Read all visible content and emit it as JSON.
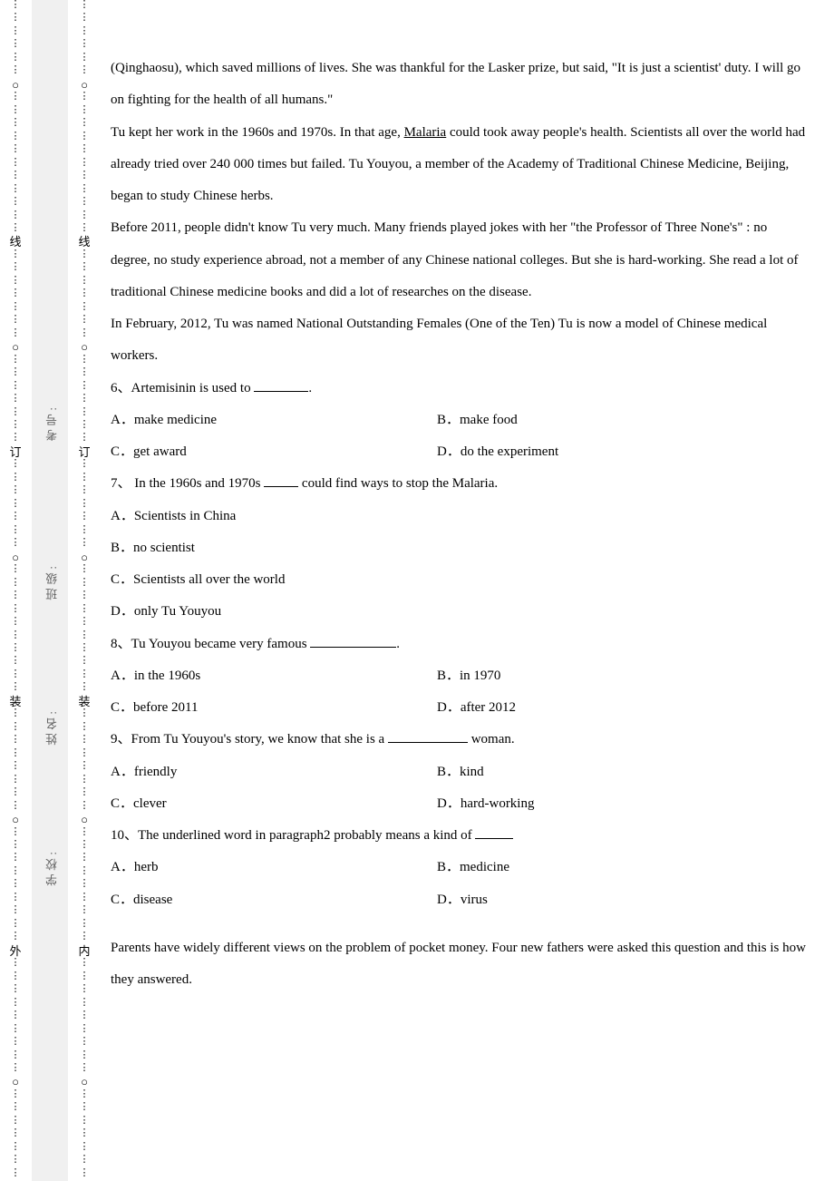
{
  "margin": {
    "labels": {
      "kaohao_label": "考号:",
      "banji_label": "班级:",
      "xingming_label": "姓名:",
      "xuexiao_label": "学校:"
    },
    "col_glyphs": {
      "wai": "外",
      "nei": "内",
      "zhuang": "装",
      "ding": "订",
      "xian": "线"
    }
  },
  "passage1": {
    "p1": "(Qinghaosu), which saved millions of lives. She was thankful for the Lasker prize, but said, \"It is just a scientist' duty. I will go on fighting for the health of all humans.\"",
    "p2a": "Tu kept her work in the 1960s and 1970s. In that age, ",
    "p2_underlined": "Malaria",
    "p2b": " could took away people's health. Scientists all over the world had already tried over 240 000 times but failed. Tu Youyou, a member of the Academy of Traditional Chinese Medicine, Beijing, began to study Chinese herbs.",
    "p3": "Before 2011, people didn't know Tu very much. Many friends played jokes with her \"the Professor of Three None's\" : no degree, no study experience abroad, not a member of any Chinese national colleges. But she is hard-working. She read a lot of traditional Chinese medicine books and did a lot of researches on the disease.",
    "p4": "In February, 2012, Tu was named National Outstanding Females (One of the Ten) Tu is now a model of Chinese medical workers."
  },
  "questions": [
    {
      "num": "6、",
      "stem_pre": "Artemisinin is used to ",
      "stem_post": ".",
      "blank_w": 60,
      "opts": [
        {
          "label": "A．",
          "text": "make medicine"
        },
        {
          "label": "B．",
          "text": "make food"
        },
        {
          "label": "C．",
          "text": "get award"
        },
        {
          "label": "D．",
          "text": "do the experiment"
        }
      ],
      "layout": "2col"
    },
    {
      "num": "7、",
      "stem_pre": " In the 1960s and 1970s ",
      "stem_post": " could find ways to stop the Malaria.",
      "blank_w": 38,
      "opts": [
        {
          "label": "A．",
          "text": "Scientists in China"
        },
        {
          "label": "B．",
          "text": "no scientist"
        },
        {
          "label": "C．",
          "text": "Scientists all over the world"
        },
        {
          "label": "D．",
          "text": "only Tu Youyou"
        }
      ],
      "layout": "1col"
    },
    {
      "num": "8、",
      "stem_pre": "Tu Youyou became very famous ",
      "stem_post": ".",
      "blank_w": 95,
      "opts": [
        {
          "label": "A．",
          "text": "in the 1960s"
        },
        {
          "label": "B．",
          "text": "in 1970"
        },
        {
          "label": "C．",
          "text": "before 2011"
        },
        {
          "label": "D．",
          "text": "after 2012"
        }
      ],
      "layout": "2col"
    },
    {
      "num": "9、",
      "stem_pre": "From Tu Youyou's story, we know that she is a ",
      "stem_post": " woman.",
      "blank_w": 88,
      "opts": [
        {
          "label": "A．",
          "text": "friendly"
        },
        {
          "label": "B．",
          "text": "kind"
        },
        {
          "label": "C．",
          "text": "clever"
        },
        {
          "label": "D．",
          "text": "hard-working"
        }
      ],
      "layout": "2col"
    },
    {
      "num": "10、",
      "stem_pre": "The underlined word in paragraph2 probably means a kind of ",
      "stem_post": "",
      "blank_w": 42,
      "opts": [
        {
          "label": "A．",
          "text": "herb"
        },
        {
          "label": "B．",
          "text": "medicine"
        },
        {
          "label": "C．",
          "text": "disease"
        },
        {
          "label": "D．",
          "text": "virus"
        }
      ],
      "layout": "2col"
    }
  ],
  "passage2": {
    "p1": "Parents have widely different views on the problem of pocket money. Four new fathers were asked this question and this is how they answered."
  }
}
